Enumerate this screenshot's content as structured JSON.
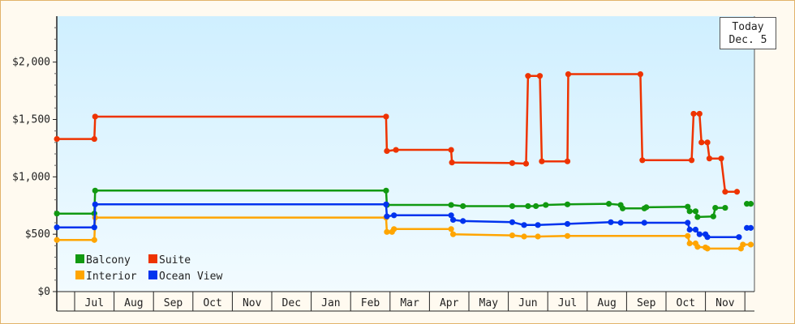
{
  "today": {
    "line1": "Today",
    "line2": "Dec. 5"
  },
  "chart_data": {
    "type": "line",
    "step": true,
    "xlabel": "",
    "ylabel": "",
    "y_ticks": [
      "$0",
      "$500",
      "$1,000",
      "$1,500",
      "$2,000"
    ],
    "y_tick_values": [
      0,
      500,
      1000,
      1500,
      2000
    ],
    "ylim": [
      0,
      2400
    ],
    "x_tick_labels": [
      "Jul",
      "Aug",
      "Sep",
      "Oct",
      "Nov",
      "Dec",
      "Jan",
      "Feb",
      "Mar",
      "Apr",
      "May",
      "Jun",
      "Jul",
      "Aug",
      "Sep",
      "Oct",
      "Nov"
    ],
    "x_tick_positions": [
      0.5,
      1.5,
      2.5,
      3.5,
      4.5,
      5.5,
      6.5,
      7.5,
      8.5,
      9.5,
      10.5,
      11.5,
      12.5,
      13.5,
      14.5,
      15.5,
      16.5
    ],
    "x_month_boundaries": [
      0,
      1,
      2,
      3,
      4,
      5,
      6,
      7,
      8,
      9,
      10,
      11,
      12,
      13,
      14,
      15,
      16,
      17
    ],
    "xlim": [
      -0.45,
      17.2
    ],
    "legend_position": "bottom-left",
    "grid": false,
    "background": "gradient-light-blue",
    "series": [
      {
        "name": "Balcony",
        "color": "#119911",
        "points": [
          [
            -0.45,
            680
          ],
          [
            0.5,
            680
          ],
          [
            0.52,
            880
          ],
          [
            7.9,
            880
          ],
          [
            7.92,
            755
          ],
          [
            9.55,
            755
          ],
          [
            9.85,
            745
          ],
          [
            11.1,
            745
          ],
          [
            11.5,
            745
          ],
          [
            11.7,
            745
          ],
          [
            11.95,
            755
          ],
          [
            12.5,
            760
          ],
          [
            13.55,
            765
          ],
          [
            13.85,
            755
          ],
          [
            13.9,
            725
          ],
          [
            14.45,
            725
          ],
          [
            14.5,
            735
          ],
          [
            15.55,
            740
          ],
          [
            15.6,
            700
          ],
          [
            15.75,
            700
          ],
          [
            15.8,
            650
          ],
          [
            16.2,
            655
          ],
          [
            16.25,
            730
          ],
          [
            16.5,
            730
          ]
        ],
        "extra_points": [
          [
            17.05,
            765
          ],
          [
            17.15,
            765
          ]
        ]
      },
      {
        "name": "Suite",
        "color": "#ee3300",
        "points": [
          [
            -0.45,
            1330
          ],
          [
            0.5,
            1330
          ],
          [
            0.52,
            1525
          ],
          [
            7.9,
            1525
          ],
          [
            7.92,
            1225
          ],
          [
            8.15,
            1235
          ],
          [
            9.55,
            1235
          ],
          [
            9.57,
            1125
          ],
          [
            11.1,
            1120
          ],
          [
            11.45,
            1115
          ],
          [
            11.5,
            1880
          ],
          [
            11.8,
            1880
          ],
          [
            11.85,
            1135
          ],
          [
            12.5,
            1135
          ],
          [
            12.52,
            1895
          ],
          [
            14.35,
            1895
          ],
          [
            14.4,
            1145
          ],
          [
            15.65,
            1145
          ],
          [
            15.7,
            1550
          ],
          [
            15.85,
            1550
          ],
          [
            15.9,
            1300
          ],
          [
            16.05,
            1300
          ],
          [
            16.1,
            1160
          ],
          [
            16.4,
            1160
          ],
          [
            16.5,
            870
          ],
          [
            16.8,
            870
          ]
        ]
      },
      {
        "name": "Interior",
        "color": "#ffa500",
        "points": [
          [
            -0.45,
            450
          ],
          [
            0.5,
            450
          ],
          [
            0.52,
            645
          ],
          [
            7.9,
            645
          ],
          [
            7.92,
            520
          ],
          [
            8.05,
            520
          ],
          [
            8.1,
            545
          ],
          [
            9.55,
            545
          ],
          [
            9.6,
            500
          ],
          [
            11.1,
            490
          ],
          [
            11.4,
            480
          ],
          [
            11.75,
            480
          ],
          [
            12.5,
            485
          ],
          [
            15.55,
            485
          ],
          [
            15.6,
            420
          ],
          [
            15.75,
            420
          ],
          [
            15.8,
            390
          ],
          [
            16.0,
            385
          ],
          [
            16.05,
            375
          ],
          [
            16.9,
            375
          ],
          [
            16.95,
            410
          ],
          [
            17.15,
            410
          ]
        ]
      },
      {
        "name": "Ocean View",
        "color": "#0033ee",
        "points": [
          [
            -0.45,
            560
          ],
          [
            0.5,
            560
          ],
          [
            0.52,
            760
          ],
          [
            7.9,
            760
          ],
          [
            7.92,
            655
          ],
          [
            8.1,
            665
          ],
          [
            9.55,
            665
          ],
          [
            9.6,
            625
          ],
          [
            9.85,
            615
          ],
          [
            11.1,
            605
          ],
          [
            11.4,
            580
          ],
          [
            11.75,
            580
          ],
          [
            12.5,
            590
          ],
          [
            13.6,
            605
          ],
          [
            13.85,
            600
          ],
          [
            14.45,
            600
          ],
          [
            15.55,
            600
          ],
          [
            15.6,
            540
          ],
          [
            15.75,
            540
          ],
          [
            15.85,
            500
          ],
          [
            16.0,
            500
          ],
          [
            16.05,
            475
          ],
          [
            16.85,
            475
          ]
        ],
        "extra_points": [
          [
            17.05,
            555
          ],
          [
            17.15,
            555
          ]
        ]
      }
    ]
  }
}
